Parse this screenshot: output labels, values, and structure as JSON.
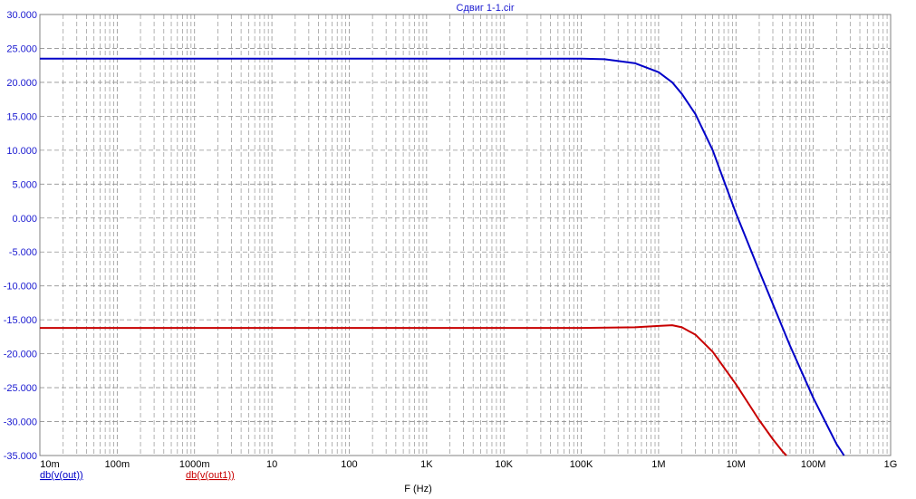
{
  "chart_data": {
    "type": "line",
    "title": "Сдвиг 1-1.cir",
    "xlabel": "F (Hz)",
    "ylabel": "",
    "x_scale": "log",
    "xlim": [
      0.01,
      1000000000
    ],
    "ylim": [
      -35,
      30
    ],
    "grid": true,
    "x_tick_values": [
      0.01,
      0.1,
      1,
      10,
      100,
      1000,
      10000,
      100000,
      1000000,
      10000000,
      100000000,
      1000000000
    ],
    "x_tick_labels": [
      "10m",
      "100m",
      "1000m",
      "10",
      "100",
      "1K",
      "10K",
      "100K",
      "1M",
      "10M",
      "100M",
      "1G"
    ],
    "y_tick_values": [
      30,
      25,
      20,
      15,
      10,
      5,
      0,
      -5,
      -10,
      -15,
      -20,
      -25,
      -30,
      -35
    ],
    "y_tick_labels": [
      "30.000",
      "25.000",
      "20.000",
      "15.000",
      "10.000",
      "5.000",
      "0.000",
      "-5.000",
      "-10.000",
      "-15.000",
      "-20.000",
      "-25.000",
      "-30.000",
      "-35.000"
    ],
    "series": [
      {
        "name": "db(v(out))",
        "color": "#0000c8",
        "x": [
          0.01,
          0.1,
          1,
          10,
          100,
          1000,
          10000,
          100000,
          200000,
          500000,
          1000000,
          1500000,
          2000000,
          3000000,
          5000000,
          7000000,
          10000000,
          20000000,
          50000000,
          100000000,
          150000000,
          200000000,
          250000000
        ],
        "y": [
          23.5,
          23.5,
          23.5,
          23.5,
          23.5,
          23.5,
          23.5,
          23.5,
          23.4,
          22.8,
          21.5,
          20.0,
          18.3,
          15.3,
          10.0,
          5.5,
          0.7,
          -7.8,
          -18.8,
          -26.5,
          -30.5,
          -33.3,
          -35.0
        ]
      },
      {
        "name": "db(v(out1))",
        "color": "#c80000",
        "x": [
          0.01,
          0.1,
          1,
          10,
          100,
          1000,
          10000,
          100000,
          500000,
          1000000,
          1500000,
          2000000,
          3000000,
          5000000,
          10000000,
          20000000,
          30000000,
          40000000,
          45000000
        ],
        "y": [
          -16.2,
          -16.2,
          -16.2,
          -16.2,
          -16.2,
          -16.2,
          -16.2,
          -16.2,
          -16.1,
          -15.9,
          -15.8,
          -16.1,
          -17.2,
          -19.7,
          -24.5,
          -29.8,
          -32.6,
          -34.4,
          -35.0
        ]
      }
    ]
  }
}
